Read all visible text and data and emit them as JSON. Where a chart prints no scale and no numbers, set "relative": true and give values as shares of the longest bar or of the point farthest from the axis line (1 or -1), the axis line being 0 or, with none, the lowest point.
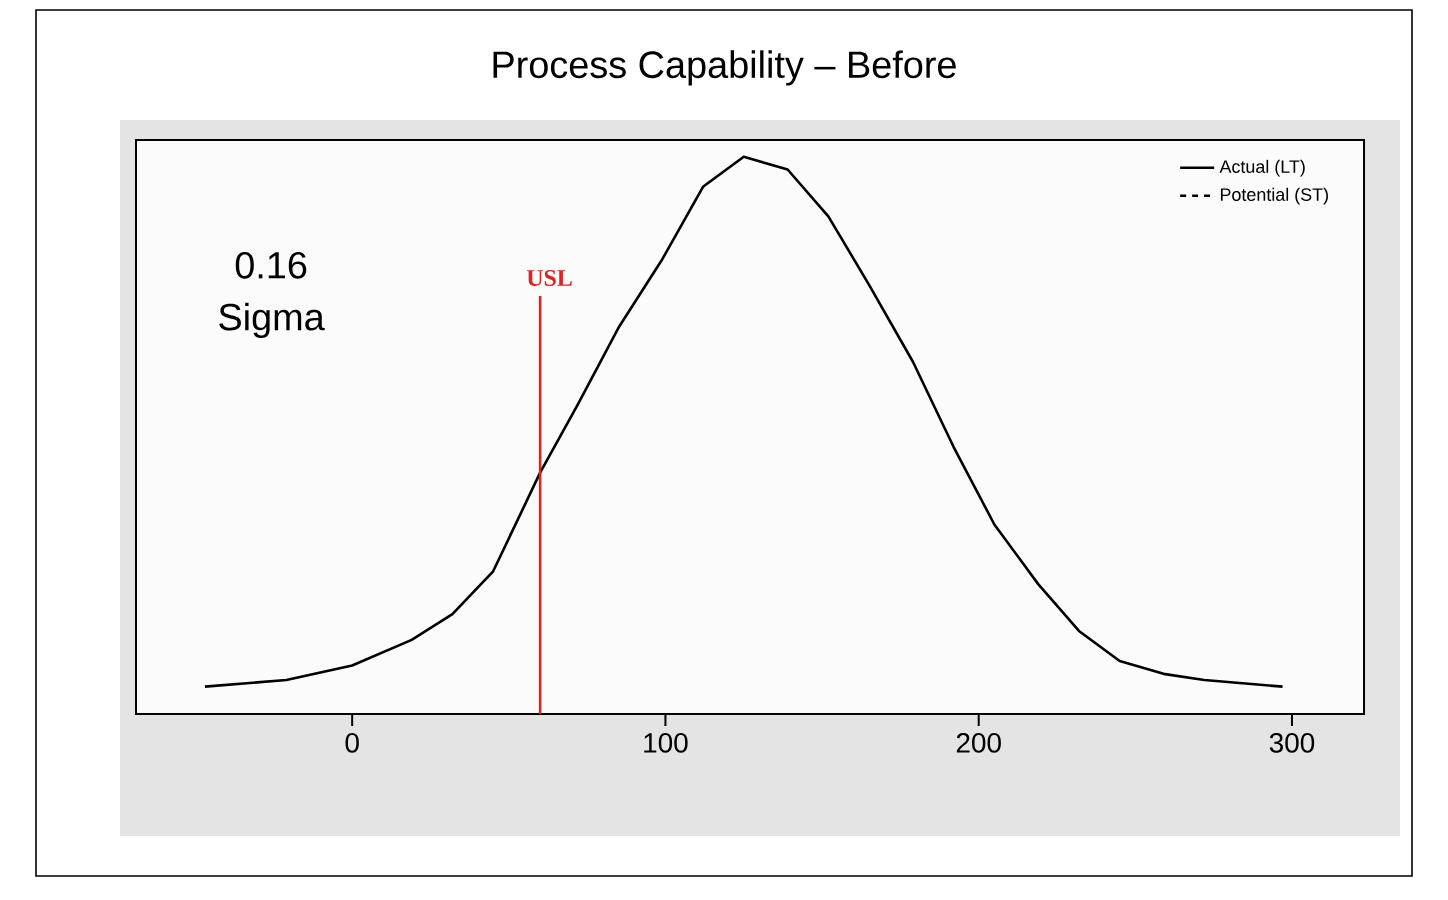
{
  "chart_data": {
    "type": "line",
    "title": "Process Capability – Before",
    "relative": true,
    "x": [
      -47,
      -21,
      0,
      19,
      32,
      45,
      60,
      72,
      85,
      99,
      112,
      125,
      139,
      152,
      165,
      179,
      192,
      205,
      219,
      232,
      245,
      259,
      272,
      297
    ],
    "series": [
      {
        "name": "Actual (LT)",
        "color": "#000000",
        "line_style": "solid",
        "values": [
          0.049,
          0.061,
          0.087,
          0.133,
          0.179,
          0.256,
          0.433,
          0.555,
          0.693,
          0.816,
          0.946,
          1.0,
          0.977,
          0.893,
          0.77,
          0.632,
          0.479,
          0.34,
          0.233,
          0.149,
          0.095,
          0.072,
          0.061,
          0.049
        ]
      },
      {
        "name": "Potential (ST)",
        "color": "#000000",
        "line_style": "dashed",
        "values": [
          null,
          null,
          null,
          null,
          null,
          null,
          null,
          null,
          null,
          null,
          null,
          null,
          null,
          null,
          null,
          null,
          null,
          null,
          null,
          null,
          null,
          null,
          null,
          null
        ]
      }
    ],
    "xlim": [
      -69,
      323
    ],
    "xticks": [
      0,
      100,
      200,
      300
    ],
    "ref_lines": [
      {
        "axis": "x",
        "value": 60,
        "label": "USL",
        "color": "#dd2222"
      }
    ],
    "annotations": [
      "0.16 Sigma"
    ],
    "legend": "top right",
    "grid": false,
    "marker": "none"
  }
}
